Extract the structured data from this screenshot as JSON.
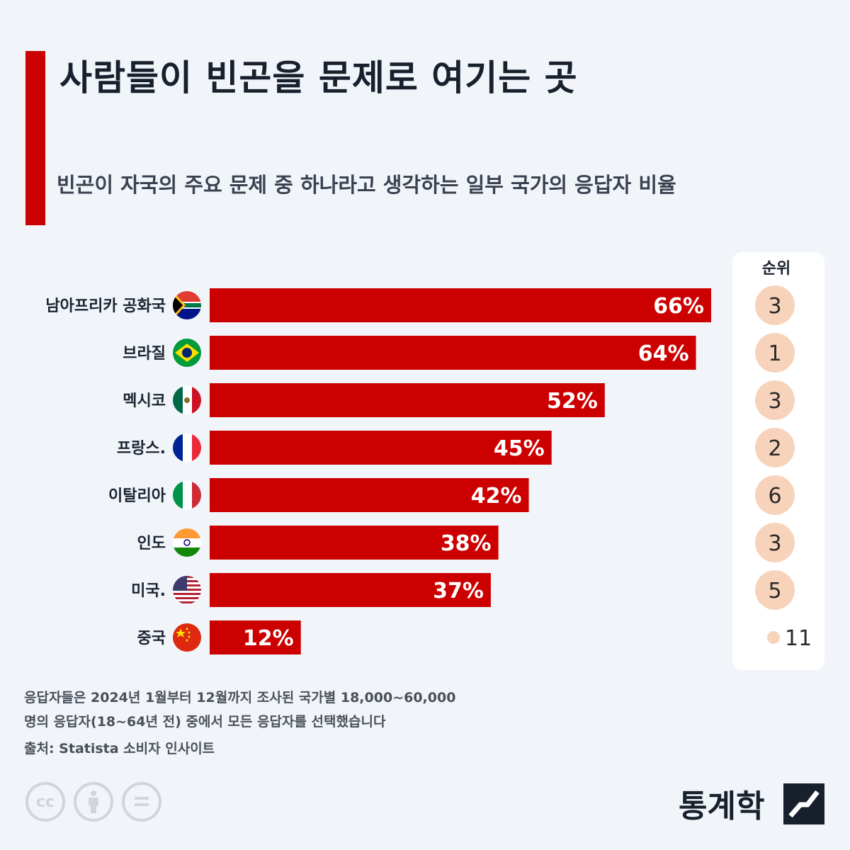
{
  "header": {
    "title": "사람들이 빈곤을 문제로 여기는 곳",
    "subtitle": "빈곤이 자국의 주요 문제 중 하나라고 생각하는 일부 국가의 응답자 비율"
  },
  "colors": {
    "accent": "#cc0000",
    "bar": "#cc0000",
    "rank_circle": "#f8d3bb",
    "background": "#f1f5fa"
  },
  "chart_data": {
    "type": "bar",
    "orientation": "horizontal",
    "categories": [
      "남아프리카 공화국",
      "브라질",
      "멕시코",
      "프랑스.",
      "이탈리아",
      "인도",
      "미국.",
      "중국"
    ],
    "values": [
      66,
      64,
      52,
      45,
      42,
      38,
      37,
      12
    ],
    "value_labels": [
      "66%",
      "64%",
      "52%",
      "45%",
      "42%",
      "38%",
      "37%",
      "12%"
    ],
    "flags": [
      "south-africa-flag-icon",
      "brazil-flag-icon",
      "mexico-flag-icon",
      "france-flag-icon",
      "italy-flag-icon",
      "india-flag-icon",
      "usa-flag-icon",
      "china-flag-icon"
    ],
    "xlim": [
      0,
      66
    ],
    "rank_header": "순위",
    "ranks": [
      "3",
      "1",
      "3",
      "2",
      "6",
      "3",
      "5",
      "11"
    ]
  },
  "footer": {
    "note_line1": "응답자들은 2024년 1월부터 12월까지 조사된 국가별 18,000~60,000",
    "note_line2": "명의 응답자(18~64년 전) 중에서 모든 응답자를 선택했습니다",
    "source": "출처: Statista 소비자 인사이트",
    "brand": "통계학"
  }
}
